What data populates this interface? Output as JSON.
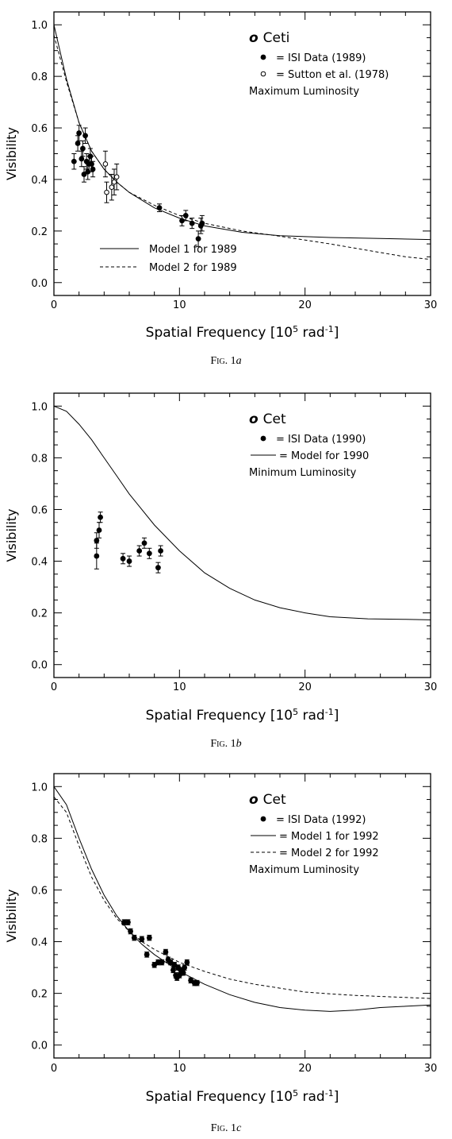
{
  "figures": [
    {
      "caption_prefix": "Fig. 1",
      "caption_letter": "a",
      "star": "o Ceti",
      "legend": [
        {
          "kind": "filled",
          "label": "= ISI Data (1989)"
        },
        {
          "kind": "open",
          "label": "= Sutton et al. (1978)"
        },
        {
          "kind": "text",
          "label": "Maximum Luminosity"
        }
      ],
      "bottom_legend": [
        {
          "kind": "solid",
          "label": "Model 1 for 1989"
        },
        {
          "kind": "dashed",
          "label": "Model 2 for 1989"
        }
      ]
    },
    {
      "caption_prefix": "Fig. 1",
      "caption_letter": "b",
      "star": "o Cet",
      "legend": [
        {
          "kind": "filled",
          "label": "= ISI Data (1990)"
        },
        {
          "kind": "solid",
          "label": "= Model for 1990"
        },
        {
          "kind": "text",
          "label": "Minimum Luminosity"
        }
      ],
      "bottom_legend": []
    },
    {
      "caption_prefix": "Fig. 1",
      "caption_letter": "c",
      "star": "o Cet",
      "legend": [
        {
          "kind": "filled",
          "label": "= ISI Data (1992)"
        },
        {
          "kind": "solid",
          "label": "= Model 1 for 1992"
        },
        {
          "kind": "dashed",
          "label": "= Model 2 for 1992"
        },
        {
          "kind": "text",
          "label": "Maximum Luminosity"
        }
      ],
      "bottom_legend": []
    }
  ],
  "chart_data": [
    {
      "type": "scatter",
      "title": "",
      "xlabel": "Spatial Frequency [10^5 rad^-1]",
      "ylabel": "Visibility",
      "xlim": [
        0,
        30
      ],
      "ylim": [
        -0.05,
        1.05
      ],
      "xticks": [
        "0",
        "10",
        "20",
        "30"
      ],
      "yticks": [
        "0.0",
        "0.2",
        "0.4",
        "0.6",
        "0.8",
        "1.0"
      ],
      "series": [
        {
          "name": "ISI Data (1989)",
          "marker": "filled",
          "x": [
            1.6,
            1.9,
            2.0,
            2.2,
            2.3,
            2.4,
            2.5,
            2.6,
            2.7,
            2.8,
            2.9,
            3.0,
            3.1,
            8.4,
            10.2,
            10.5,
            11.0,
            11.5,
            11.7,
            11.8
          ],
          "y": [
            0.47,
            0.54,
            0.58,
            0.48,
            0.52,
            0.42,
            0.57,
            0.47,
            0.43,
            0.46,
            0.49,
            0.46,
            0.44,
            0.29,
            0.24,
            0.26,
            0.23,
            0.17,
            0.22,
            0.23
          ],
          "err": [
            0.03,
            0.03,
            0.03,
            0.03,
            0.03,
            0.03,
            0.03,
            0.03,
            0.03,
            0.03,
            0.03,
            0.03,
            0.03,
            0.015,
            0.02,
            0.02,
            0.02,
            0.03,
            0.03,
            0.03
          ]
        },
        {
          "name": "Sutton et al. (1978)",
          "marker": "open",
          "x": [
            4.1,
            4.2,
            4.6,
            4.8,
            5.0
          ],
          "y": [
            0.46,
            0.35,
            0.37,
            0.39,
            0.41
          ],
          "err": [
            0.05,
            0.04,
            0.05,
            0.05,
            0.05
          ]
        },
        {
          "name": "Model 1 for 1989",
          "style": "solid",
          "x": [
            0,
            1,
            2,
            3,
            4,
            5,
            6,
            8,
            10,
            12,
            15,
            18,
            22,
            26,
            30
          ],
          "y": [
            1.0,
            0.79,
            0.62,
            0.51,
            0.44,
            0.39,
            0.35,
            0.29,
            0.25,
            0.22,
            0.195,
            0.182,
            0.175,
            0.171,
            0.167
          ]
        },
        {
          "name": "Model 2 for 1989",
          "style": "dashed",
          "x": [
            0,
            1,
            2,
            3,
            4,
            5,
            6,
            8,
            10,
            12,
            15,
            18,
            20,
            22,
            25,
            28,
            30
          ],
          "y": [
            0.96,
            0.78,
            0.62,
            0.51,
            0.44,
            0.39,
            0.35,
            0.3,
            0.26,
            0.23,
            0.2,
            0.18,
            0.165,
            0.15,
            0.125,
            0.1,
            0.09
          ]
        }
      ]
    },
    {
      "type": "scatter",
      "title": "",
      "xlabel": "Spatial Frequency [10^5 rad^-1]",
      "ylabel": "Visibility",
      "xlim": [
        0,
        30
      ],
      "ylim": [
        -0.05,
        1.05
      ],
      "xticks": [
        "0",
        "10",
        "20",
        "30"
      ],
      "yticks": [
        "0.0",
        "0.2",
        "0.4",
        "0.6",
        "0.8",
        "1.0"
      ],
      "series": [
        {
          "name": "ISI Data (1990)",
          "marker": "filled",
          "x": [
            3.4,
            3.4,
            3.6,
            3.7,
            5.5,
            6.0,
            6.8,
            7.2,
            7.6,
            8.3,
            8.5
          ],
          "y": [
            0.48,
            0.42,
            0.52,
            0.57,
            0.41,
            0.4,
            0.44,
            0.47,
            0.43,
            0.375,
            0.44
          ],
          "err": [
            0.03,
            0.05,
            0.03,
            0.02,
            0.02,
            0.02,
            0.02,
            0.02,
            0.02,
            0.02,
            0.02
          ]
        },
        {
          "name": "Model for 1990",
          "style": "solid",
          "x": [
            0,
            1,
            2,
            3,
            4,
            5,
            6,
            8,
            10,
            12,
            14,
            16,
            18,
            20,
            22,
            25,
            28,
            30
          ],
          "y": [
            1.0,
            0.98,
            0.93,
            0.87,
            0.8,
            0.73,
            0.66,
            0.54,
            0.44,
            0.355,
            0.295,
            0.25,
            0.22,
            0.2,
            0.185,
            0.177,
            0.175,
            0.173
          ]
        }
      ]
    },
    {
      "type": "scatter",
      "title": "",
      "xlabel": "Spatial Frequency [10^5 rad^-1]",
      "ylabel": "Visibility",
      "xlim": [
        0,
        30
      ],
      "ylim": [
        -0.05,
        1.05
      ],
      "xticks": [
        "0",
        "10",
        "20",
        "30"
      ],
      "yticks": [
        "0.0",
        "0.2",
        "0.4",
        "0.6",
        "0.8",
        "1.0"
      ],
      "series": [
        {
          "name": "ISI Data (1992)",
          "marker": "filled",
          "x": [
            5.6,
            5.9,
            6.1,
            6.4,
            7.0,
            7.4,
            7.6,
            8.0,
            8.3,
            8.6,
            8.9,
            9.1,
            9.3,
            9.5,
            9.6,
            9.7,
            9.8,
            9.9,
            10.0,
            10.1,
            10.2,
            10.3,
            10.4,
            10.6,
            10.9,
            11.2,
            11.4
          ],
          "y": [
            0.475,
            0.475,
            0.44,
            0.415,
            0.41,
            0.35,
            0.415,
            0.31,
            0.32,
            0.32,
            0.36,
            0.33,
            0.32,
            0.29,
            0.31,
            0.27,
            0.26,
            0.3,
            0.27,
            0.29,
            0.28,
            0.28,
            0.3,
            0.32,
            0.25,
            0.24,
            0.24
          ],
          "err": [
            0.01,
            0.01,
            0.01,
            0.01,
            0.01,
            0.01,
            0.01,
            0.01,
            0.01,
            0.01,
            0.01,
            0.01,
            0.01,
            0.01,
            0.01,
            0.01,
            0.01,
            0.01,
            0.01,
            0.01,
            0.01,
            0.01,
            0.01,
            0.01,
            0.01,
            0.01,
            0.01
          ]
        },
        {
          "name": "Model 1 for 1992",
          "style": "solid",
          "x": [
            0,
            1,
            2,
            3,
            4,
            5,
            6,
            7,
            8,
            10,
            12,
            14,
            16,
            18,
            20,
            22,
            24,
            26,
            28,
            30
          ],
          "y": [
            1.0,
            0.93,
            0.8,
            0.68,
            0.58,
            0.5,
            0.44,
            0.39,
            0.35,
            0.285,
            0.235,
            0.195,
            0.165,
            0.145,
            0.135,
            0.13,
            0.135,
            0.145,
            0.15,
            0.155
          ]
        },
        {
          "name": "Model 2 for 1992",
          "style": "dashed",
          "x": [
            0,
            1,
            2,
            3,
            4,
            5,
            6,
            7,
            8,
            10,
            12,
            14,
            16,
            18,
            20,
            22,
            24,
            26,
            28,
            30
          ],
          "y": [
            0.96,
            0.9,
            0.77,
            0.65,
            0.56,
            0.49,
            0.44,
            0.4,
            0.37,
            0.32,
            0.285,
            0.255,
            0.235,
            0.22,
            0.205,
            0.198,
            0.192,
            0.188,
            0.184,
            0.18
          ]
        }
      ]
    }
  ]
}
